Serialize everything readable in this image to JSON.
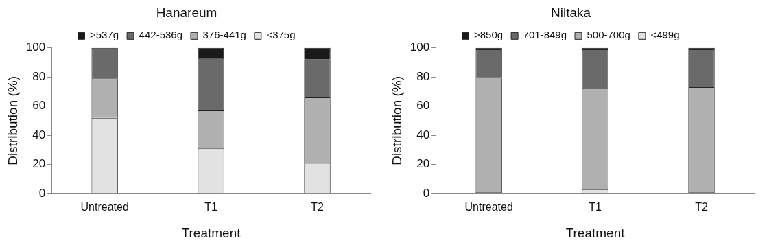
{
  "chart_data": [
    {
      "type": "bar",
      "title": "Hanareum",
      "xlabel": "Treatment",
      "ylabel": "Distribution (%)",
      "categories": [
        "Untreated",
        "T1",
        "T2"
      ],
      "stacked": true,
      "ylim": [
        0,
        100
      ],
      "yticks": [
        0,
        20,
        40,
        60,
        80,
        100
      ],
      "grid": false,
      "legend": "top",
      "series": [
        {
          "name": "<375g",
          "color": "#e2e2e2",
          "values": [
            52,
            31,
            21
          ]
        },
        {
          "name": "376-441g",
          "color": "#b0b0b0",
          "values": [
            27,
            26,
            45
          ]
        },
        {
          "name": "442-536g",
          "color": "#6a6a6a",
          "values": [
            21,
            36,
            26
          ]
        },
        {
          "name": ">537g",
          "color": "#1a1a1a",
          "values": [
            0,
            7,
            8
          ]
        }
      ]
    },
    {
      "type": "bar",
      "title": "Niitaka",
      "xlabel": "Treatment",
      "ylabel": "Distribution (%)",
      "categories": [
        "Untreated",
        "T1",
        "T2"
      ],
      "stacked": true,
      "ylim": [
        0,
        100
      ],
      "yticks": [
        0,
        20,
        40,
        60,
        80,
        100
      ],
      "grid": false,
      "legend": "top",
      "series": [
        {
          "name": "<499g",
          "color": "#e2e2e2",
          "values": [
            1,
            3,
            1
          ]
        },
        {
          "name": "500-700g",
          "color": "#b0b0b0",
          "values": [
            79,
            69,
            72
          ]
        },
        {
          "name": "701-849g",
          "color": "#6a6a6a",
          "values": [
            19,
            27,
            26
          ]
        },
        {
          "name": ">850g",
          "color": "#1a1a1a",
          "values": [
            1,
            1,
            1
          ]
        }
      ]
    }
  ]
}
